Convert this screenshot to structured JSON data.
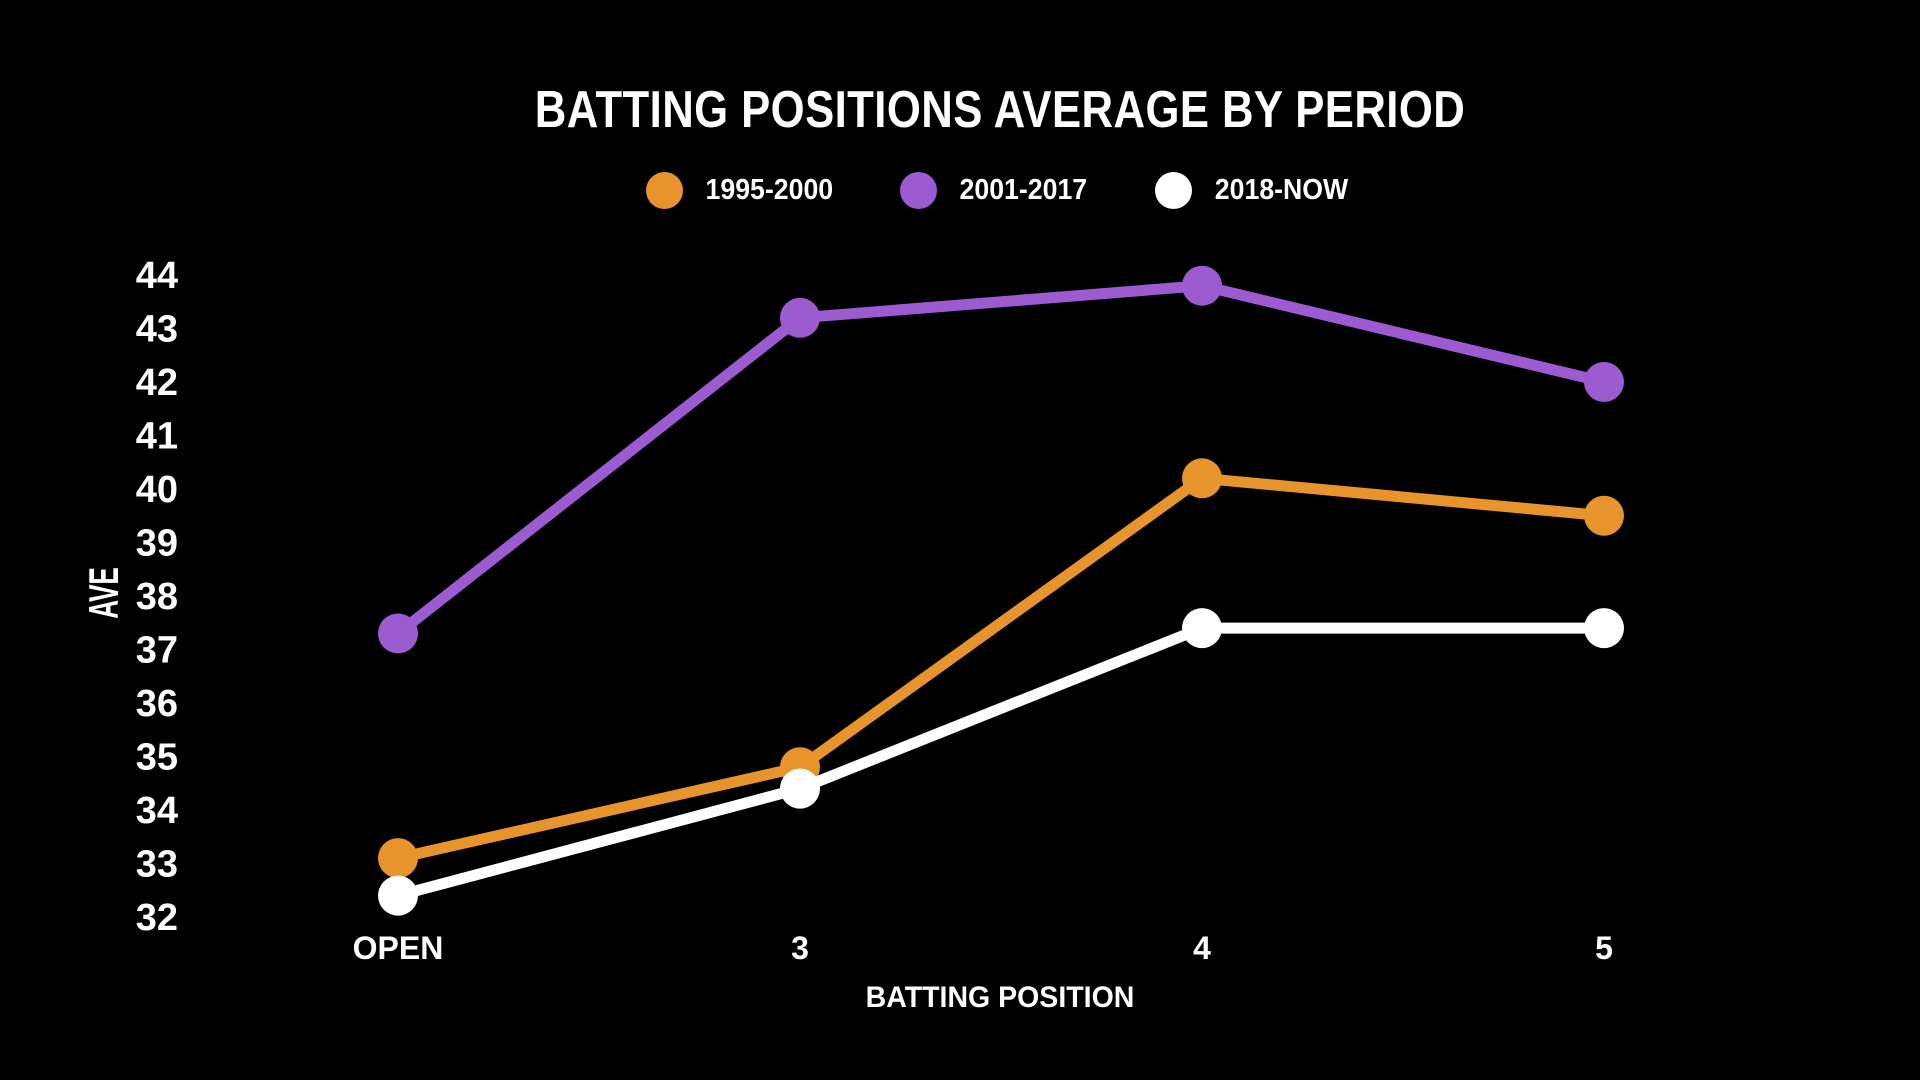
{
  "background_color": "#000000",
  "text_color": "#ffffff",
  "chart_data": {
    "type": "line",
    "title": "BATTING POSITIONS AVERAGE BY PERIOD",
    "xlabel": "BATTING POSITION",
    "ylabel": "AVE",
    "categories": [
      "OPEN",
      "3",
      "4",
      "5"
    ],
    "series": [
      {
        "name": "1995-2000",
        "color": "#E8942D",
        "values": [
          33.1,
          34.8,
          40.2,
          39.5
        ]
      },
      {
        "name": "2001-2017",
        "color": "#9C5BD1",
        "values": [
          37.3,
          43.2,
          43.8,
          42.0
        ]
      },
      {
        "name": "2018-NOW",
        "color": "#FFFFFF",
        "values": [
          32.4,
          34.4,
          37.4,
          37.4
        ]
      }
    ],
    "yticks": [
      44,
      43,
      42,
      41,
      40,
      39,
      38,
      37,
      36,
      35,
      34,
      33,
      32
    ],
    "ylim": [
      32,
      44
    ],
    "grid": "off",
    "legend_position": "top"
  }
}
